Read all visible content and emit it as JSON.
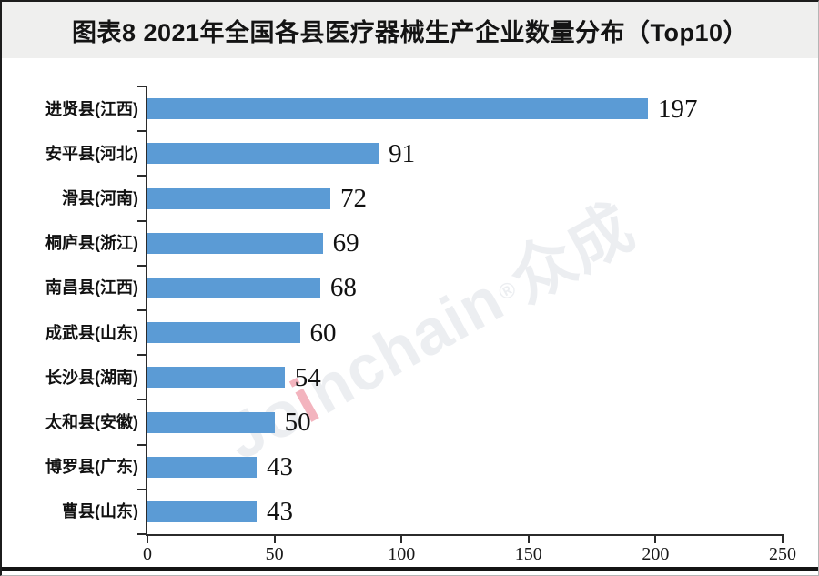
{
  "title": "图表8 2021年全国各县医疗器械生产企业数量分布（Top10）",
  "watermark": {
    "lead": "Jo",
    "accent_i": "i",
    "tail": "nchain",
    "registered": "®",
    "cjk": "众成"
  },
  "colors": {
    "bar": "#5B9BD5",
    "axis": "#2b2b2b",
    "title_band_bg": "#efefee",
    "watermark": "rgba(150,158,175,0.18)",
    "watermark_accent": "rgba(228,88,110,0.45)",
    "bottom_rule": "#141414"
  },
  "chart_data": {
    "type": "bar",
    "orientation": "horizontal",
    "title": "图表8 2021年全国各县医疗器械生产企业数量分布（Top10）",
    "categories": [
      "进贤县(江西)",
      "安平县(河北)",
      "滑县(河南)",
      "桐庐县(浙江)",
      "南昌县(江西)",
      "成武县(山东)",
      "长沙县(湖南)",
      "太和县(安徽)",
      "博罗县(广东)",
      "曹县(山东)"
    ],
    "values": [
      197,
      91,
      72,
      69,
      68,
      60,
      54,
      50,
      43,
      43
    ],
    "x_ticks": [
      0,
      50,
      100,
      150,
      200,
      250
    ],
    "xlim": [
      0,
      250
    ],
    "xlabel": "",
    "ylabel": "",
    "grid": false,
    "legend": null,
    "value_labels": true
  }
}
